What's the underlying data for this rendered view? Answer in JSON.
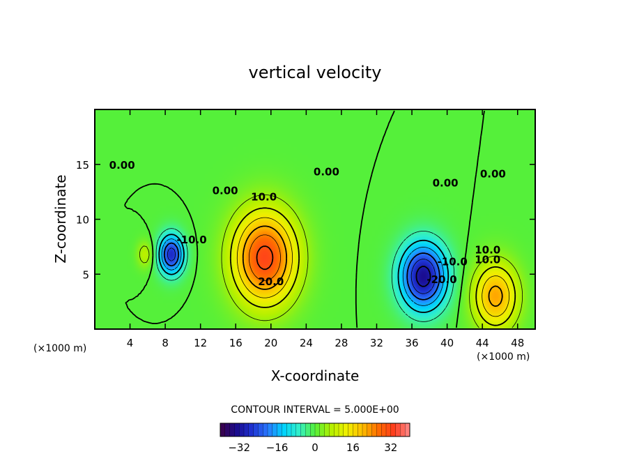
{
  "chart_data": {
    "type": "heatmap",
    "title": "vertical velocity",
    "xlabel": "X-coordinate",
    "ylabel": "Z-coordinate",
    "x_units": "(×1000 m)",
    "y_units": "(×1000 m)",
    "xlim": [
      0,
      50
    ],
    "ylim": [
      0,
      20
    ],
    "x_ticks": [
      4,
      8,
      12,
      16,
      20,
      24,
      28,
      32,
      36,
      40,
      44,
      48
    ],
    "y_ticks": [
      5,
      10,
      15
    ],
    "contour_interval_text": "CONTOUR INTERVAL = 5.000E+00",
    "colorbar": {
      "range": [
        -40,
        40
      ],
      "ticks": [
        -32,
        -16,
        0,
        16,
        32
      ],
      "tick_labels": [
        "−32",
        "−16",
        "0",
        "16",
        "32"
      ],
      "colors": [
        "#3c0046",
        "#1a0a8c",
        "#1e32d2",
        "#2a78ff",
        "#00d2ff",
        "#33f0c8",
        "#55f03a",
        "#b4f000",
        "#f0f000",
        "#ffbe00",
        "#ff6e00",
        "#ff3c1e",
        "#ff8c8c"
      ]
    },
    "features": [
      {
        "name": "updraft",
        "x": 19.3,
        "z": 6.5,
        "peak": 32,
        "width_x": 3.6,
        "width_z": 4.2
      },
      {
        "name": "updraft",
        "x": 45.5,
        "z": 3.0,
        "peak": 22,
        "width_x": 2.5,
        "width_z": 3.0
      },
      {
        "name": "downdraft",
        "x": 37.3,
        "z": 4.8,
        "peak": -33,
        "width_x": 2.6,
        "width_z": 3.0
      },
      {
        "name": "downdraft",
        "x": 8.7,
        "z": 6.8,
        "peak": -28,
        "width_x": 1.4,
        "width_z": 1.8
      },
      {
        "name": "updraft",
        "x": 5.7,
        "z": 6.8,
        "peak": 8,
        "width_x": 0.9,
        "width_z": 1.2
      }
    ],
    "contour_labels": [
      {
        "text": "0.00",
        "x": 3.1,
        "z": 14.6
      },
      {
        "text": "0.00",
        "x": 14.8,
        "z": 12.3
      },
      {
        "text": "0.00",
        "x": 26.3,
        "z": 14.0
      },
      {
        "text": "0.00",
        "x": 39.8,
        "z": 13.0
      },
      {
        "text": "0.00",
        "x": 45.2,
        "z": 13.8
      },
      {
        "text": "10.0",
        "x": 19.2,
        "z": 11.7
      },
      {
        "text": "20.0",
        "x": 20.0,
        "z": 4.0
      },
      {
        "text": "10.0",
        "x": 44.6,
        "z": 6.0
      },
      {
        "text": "10.0",
        "x": 44.6,
        "z": 6.9
      },
      {
        "text": "-10.0",
        "x": 11.0,
        "z": 7.8
      },
      {
        "text": "-10.0",
        "x": 40.6,
        "z": 5.8
      },
      {
        "text": "-20.0",
        "x": 39.4,
        "z": 4.2
      }
    ]
  }
}
